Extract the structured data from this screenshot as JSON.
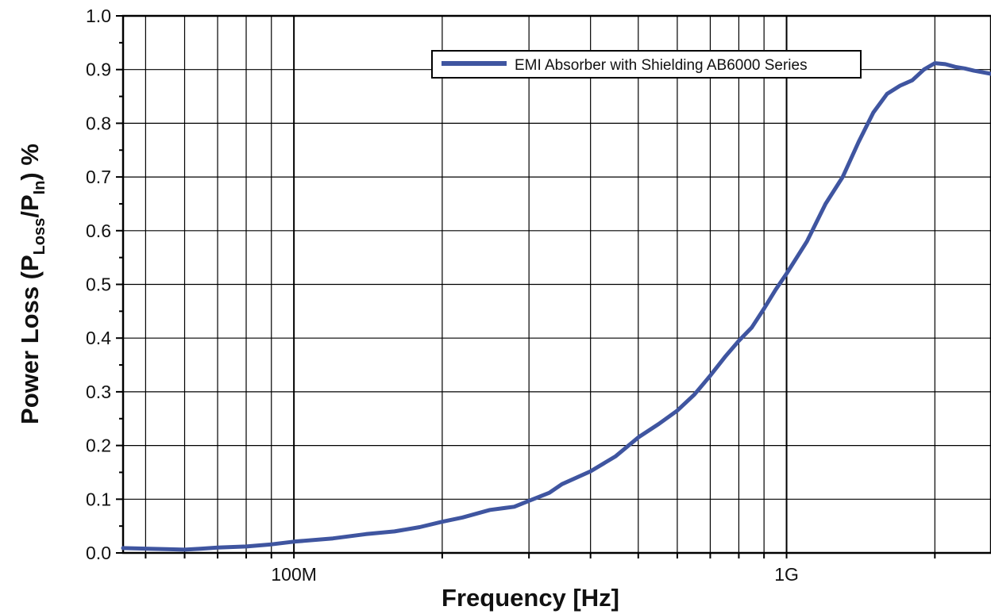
{
  "chart_data": {
    "type": "line",
    "title": "",
    "xlabel": "Frequency [Hz]",
    "ylabel_parts": {
      "prefix": "Power Loss (P",
      "sub1": "Loss",
      "middle": "/P",
      "sub2": "In",
      "suffix": ")  %"
    },
    "x_scale": "log",
    "xlim": [
      45000000,
      2600000000
    ],
    "ylim": [
      0.0,
      1.0
    ],
    "grid": true,
    "legend_position": "top-right",
    "x_tick_labels": [
      {
        "label": "100M",
        "value": 100000000
      },
      {
        "label": "1G",
        "value": 1000000000
      }
    ],
    "y_tick_labels": [
      "0.0",
      "0.1",
      "0.2",
      "0.3",
      "0.4",
      "0.5",
      "0.6",
      "0.7",
      "0.8",
      "0.9",
      "1.0"
    ],
    "series": [
      {
        "name": "EMI Absorber with Shielding AB6000 Series",
        "color": "#3f55a0",
        "x": [
          45000000,
          50000000,
          55000000,
          60000000,
          65000000,
          70000000,
          80000000,
          90000000,
          100000000,
          120000000,
          140000000,
          160000000,
          180000000,
          200000000,
          220000000,
          250000000,
          280000000,
          300000000,
          330000000,
          350000000,
          400000000,
          450000000,
          500000000,
          550000000,
          600000000,
          650000000,
          700000000,
          750000000,
          800000000,
          850000000,
          900000000,
          950000000,
          1000000000,
          1100000000,
          1200000000,
          1300000000,
          1400000000,
          1500000000,
          1600000000,
          1700000000,
          1800000000,
          1900000000,
          2000000000,
          2100000000,
          2200000000,
          2300000000,
          2400000000,
          2600000000
        ],
        "y": [
          0.009,
          0.008,
          0.007,
          0.006,
          0.008,
          0.01,
          0.012,
          0.016,
          0.021,
          0.027,
          0.035,
          0.04,
          0.048,
          0.058,
          0.066,
          0.08,
          0.086,
          0.097,
          0.112,
          0.128,
          0.152,
          0.18,
          0.215,
          0.24,
          0.265,
          0.295,
          0.33,
          0.365,
          0.395,
          0.42,
          0.455,
          0.49,
          0.52,
          0.58,
          0.65,
          0.7,
          0.765,
          0.82,
          0.855,
          0.87,
          0.88,
          0.9,
          0.912,
          0.91,
          0.905,
          0.902,
          0.898,
          0.892
        ]
      }
    ]
  }
}
